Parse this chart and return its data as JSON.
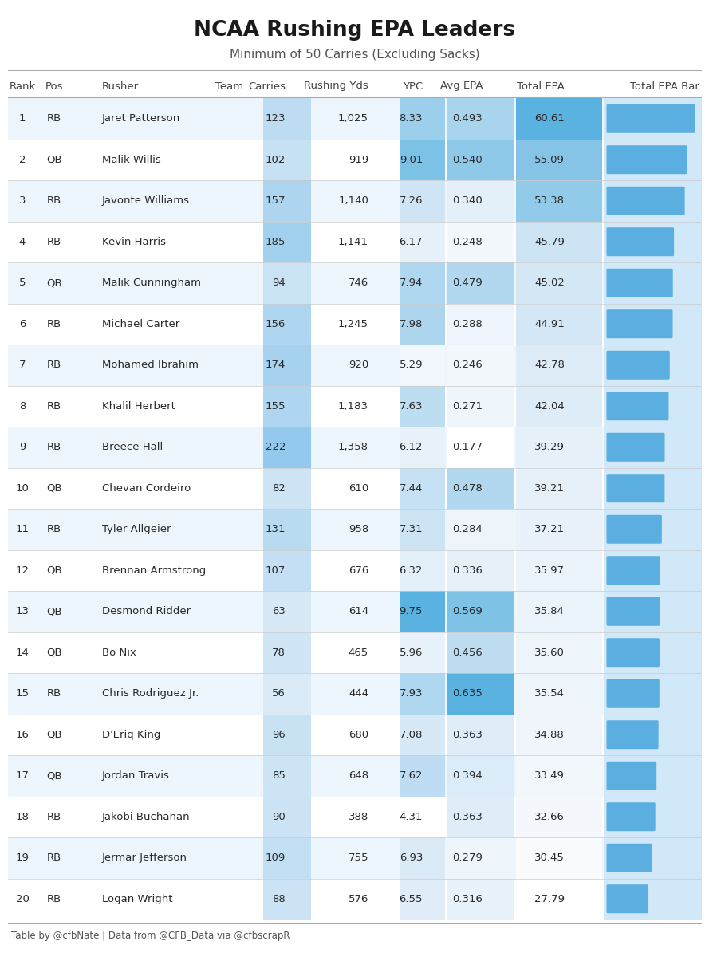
{
  "title": "NCAA Rushing EPA Leaders",
  "subtitle": "Minimum of 50 Carries (Excluding Sacks)",
  "footer": "Table by @cfbNate | Data from @CFB_Data via @cfbscrapR",
  "col_headers": [
    "Rank",
    "Pos",
    "Rusher",
    "Team",
    "Carries",
    "Rushing Yds",
    "YPC",
    "Avg EPA",
    "Total EPA",
    "Total EPA Bar"
  ],
  "rows": [
    [
      1,
      "RB",
      "Jaret Patterson",
      123,
      "1,025",
      8.33,
      0.493,
      60.61
    ],
    [
      2,
      "QB",
      "Malik Willis",
      102,
      "919",
      9.01,
      0.54,
      55.09
    ],
    [
      3,
      "RB",
      "Javonte Williams",
      157,
      "1,140",
      7.26,
      0.34,
      53.38
    ],
    [
      4,
      "RB",
      "Kevin Harris",
      185,
      "1,141",
      6.17,
      0.248,
      45.79
    ],
    [
      5,
      "QB",
      "Malik Cunningham",
      94,
      "746",
      7.94,
      0.479,
      45.02
    ],
    [
      6,
      "RB",
      "Michael Carter",
      156,
      "1,245",
      7.98,
      0.288,
      44.91
    ],
    [
      7,
      "RB",
      "Mohamed Ibrahim",
      174,
      "920",
      5.29,
      0.246,
      42.78
    ],
    [
      8,
      "RB",
      "Khalil Herbert",
      155,
      "1,183",
      7.63,
      0.271,
      42.04
    ],
    [
      9,
      "RB",
      "Breece Hall",
      222,
      "1,358",
      6.12,
      0.177,
      39.29
    ],
    [
      10,
      "QB",
      "Chevan Cordeiro",
      82,
      "610",
      7.44,
      0.478,
      39.21
    ],
    [
      11,
      "RB",
      "Tyler Allgeier",
      131,
      "958",
      7.31,
      0.284,
      37.21
    ],
    [
      12,
      "QB",
      "Brennan Armstrong",
      107,
      "676",
      6.32,
      0.336,
      35.97
    ],
    [
      13,
      "QB",
      "Desmond Ridder",
      63,
      "614",
      9.75,
      0.569,
      35.84
    ],
    [
      14,
      "QB",
      "Bo Nix",
      78,
      "465",
      5.96,
      0.456,
      35.6
    ],
    [
      15,
      "RB",
      "Chris Rodriguez Jr.",
      56,
      "444",
      7.93,
      0.635,
      35.54
    ],
    [
      16,
      "QB",
      "D'Eriq King",
      96,
      "680",
      7.08,
      0.363,
      34.88
    ],
    [
      17,
      "QB",
      "Jordan Travis",
      85,
      "648",
      7.62,
      0.394,
      33.49
    ],
    [
      18,
      "RB",
      "Jakobi Buchanan",
      90,
      "388",
      4.31,
      0.363,
      32.66
    ],
    [
      19,
      "RB",
      "Jermar Jefferson",
      109,
      "755",
      6.93,
      0.279,
      30.45
    ],
    [
      20,
      "RB",
      "Logan Wright",
      88,
      "576",
      6.55,
      0.316,
      27.79
    ]
  ],
  "max_total_epa": 60.61,
  "bg_color": "#ffffff",
  "text_color": "#2a2a2a",
  "header_text_color": "#444444",
  "title_color": "#1a1a1a",
  "subtitle_color": "#555555",
  "footer_color": "#555555",
  "bar_color": "#5aaee0",
  "bar_bg_color": "#d0e8f7",
  "row_alt_color": "#eef6fd",
  "divider_color": "#cccccc",
  "line_color": "#aaaaaa",
  "carries_color_lo": [
    218,
    234,
    247
  ],
  "carries_color_hi": [
    147,
    201,
    237
  ],
  "ypc_color_lo": [
    255,
    255,
    255
  ],
  "ypc_color_mid": [
    218,
    234,
    247
  ],
  "ypc_color_hi": [
    90,
    178,
    224
  ],
  "avgepa_color_lo": [
    255,
    255,
    255
  ],
  "avgepa_color_mid": [
    218,
    234,
    247
  ],
  "avgepa_color_hi": [
    90,
    178,
    224
  ],
  "totalepa_color_lo": [
    255,
    255,
    255
  ],
  "totalepa_color_mid": [
    218,
    234,
    247
  ],
  "totalepa_color_hi": [
    90,
    178,
    224
  ],
  "title_fontsize": 19,
  "subtitle_fontsize": 11,
  "header_fontsize": 9.5,
  "row_fontsize": 9.5,
  "footer_fontsize": 8.5
}
